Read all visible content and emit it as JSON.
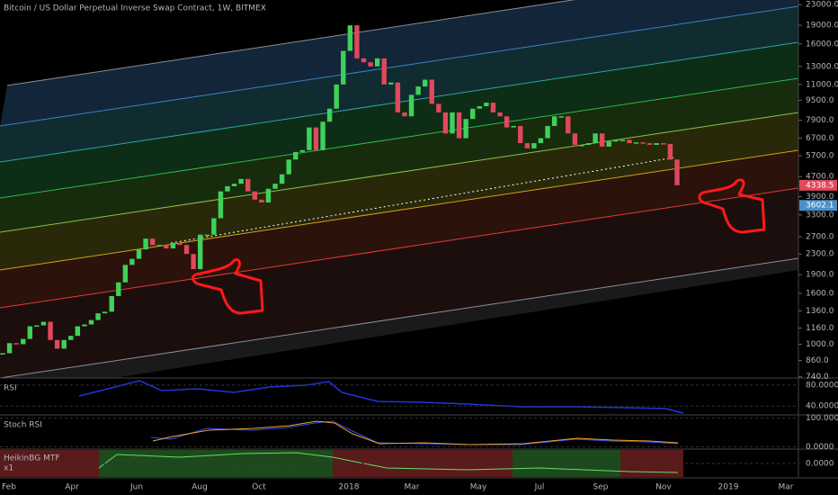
{
  "chart_data": {
    "type": "candlestick",
    "title": "Bitcoin / US Dollar Perpetual Inverse Swap Contract, 1W, BITMEX",
    "values": [
      920,
      1010,
      1000,
      1050,
      1180,
      1190,
      1230,
      1040,
      960,
      1040,
      1080,
      1180,
      1200,
      1250,
      1330,
      1350,
      1560,
      1770,
      2080,
      2200,
      2400,
      2650,
      2500,
      2500,
      2420,
      2550,
      2500,
      2300,
      2000,
      2750,
      2750,
      3200,
      4100,
      4300,
      4400,
      4600,
      4100,
      3800,
      3700,
      4200,
      4400,
      4800,
      5500,
      5900,
      6000,
      7400,
      6000,
      7800,
      8800,
      11000,
      15000,
      19000,
      14000,
      13500,
      13000,
      14000,
      11000,
      11200,
      8500,
      8200,
      10000,
      10800,
      11500,
      9200,
      8500,
      7000,
      8500,
      6700,
      8000,
      8800,
      9000,
      9300,
      8500,
      8200,
      7400,
      7500,
      6400,
      6100,
      6400,
      6700,
      7500,
      8200,
      8200,
      7000,
      6300,
      6300,
      6400,
      7000,
      6200,
      6500,
      6600,
      6600,
      6400,
      6450,
      6400,
      6300,
      6400,
      6350,
      5500,
      4338.5
    ],
    "log_y": true,
    "ylim": [
      720,
      24000
    ],
    "yticks": [
      {
        "value": 23000,
        "label": "23000.0"
      },
      {
        "value": 19000,
        "label": "19000.0"
      },
      {
        "value": 16000,
        "label": "16000.0"
      },
      {
        "value": 13000,
        "label": "13000.0"
      },
      {
        "value": 11000,
        "label": "11000.0"
      },
      {
        "value": 9500,
        "label": "9500.0"
      },
      {
        "value": 7900,
        "label": "7900.0"
      },
      {
        "value": 6700,
        "label": "6700.0"
      },
      {
        "value": 5700,
        "label": "5700.0"
      },
      {
        "value": 4700,
        "label": "4700.0"
      },
      {
        "value": 3900,
        "label": "3900.0"
      },
      {
        "value": 3300,
        "label": "3300.0"
      },
      {
        "value": 2700,
        "label": "2700.0"
      },
      {
        "value": 2300,
        "label": "2300.0"
      },
      {
        "value": 1900,
        "label": "1900.0"
      },
      {
        "value": 1600,
        "label": "1600.0"
      },
      {
        "value": 1360,
        "label": "1360.0"
      },
      {
        "value": 1160,
        "label": "1160.0"
      },
      {
        "value": 1000,
        "label": "1000.0"
      },
      {
        "value": 860,
        "label": "860.0"
      },
      {
        "value": 740,
        "label": "740.0"
      }
    ],
    "xtick_labels": [
      "Feb",
      "Apr",
      "Jun",
      "Aug",
      "Oct",
      "2018",
      "Mar",
      "May",
      "Jul",
      "Sep",
      "Nov",
      "2019",
      "Mar"
    ],
    "colors": {
      "up": "#3fd15a",
      "down": "#e0485c"
    },
    "price_labels": [
      4338.5,
      3602.1
    ]
  },
  "panes": [
    {
      "title": "RSI",
      "ylim": [
        25,
        90
      ],
      "ticks": [
        {
          "value": 80,
          "label": "80.0000"
        },
        {
          "value": 40,
          "label": "40.0000"
        }
      ]
    },
    {
      "title": "Stoch RSI",
      "ylim": [
        -5,
        105
      ],
      "ticks": [
        {
          "value": 100,
          "label": "100.0000"
        },
        {
          "value": 0,
          "label": "0.0000"
        }
      ]
    },
    {
      "title": "HeikinBG MTF",
      "subtitle": "x1",
      "ylim": [
        -1,
        1
      ],
      "ticks": [
        {
          "value": 0,
          "label": "0.0000"
        }
      ]
    }
  ]
}
